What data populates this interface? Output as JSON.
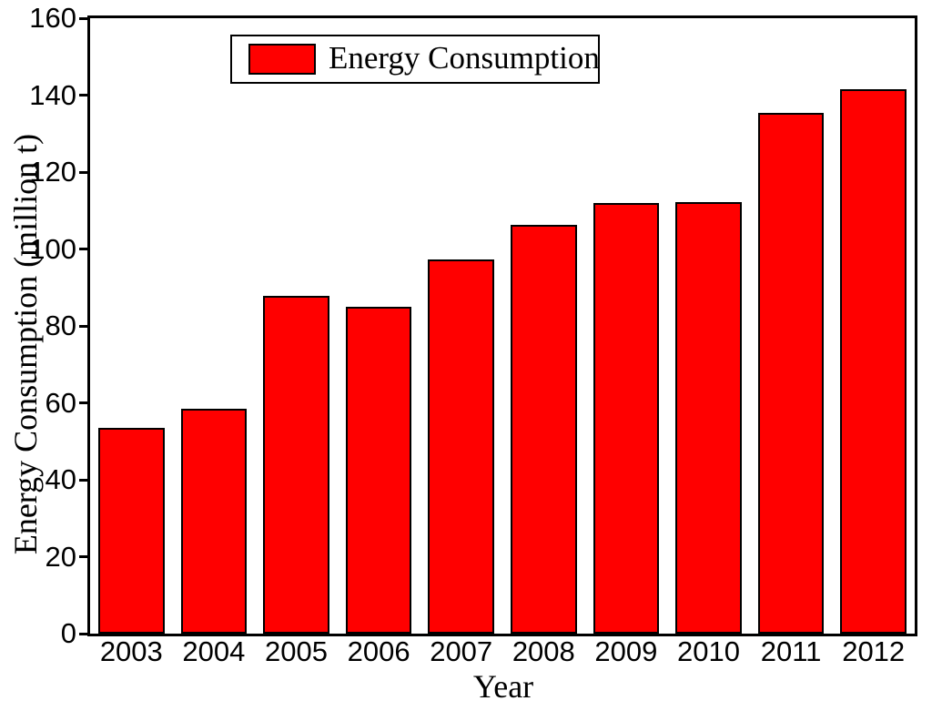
{
  "chart_data": {
    "type": "bar",
    "title": "",
    "xlabel": "Year",
    "ylabel": "Energy Consumption (million t)",
    "legend_label": "Energy Consumption",
    "legend_position": "top-center-inside",
    "categories": [
      "2003",
      "2004",
      "2005",
      "2006",
      "2007",
      "2008",
      "2009",
      "2010",
      "2011",
      "2012"
    ],
    "values": [
      53.5,
      58.5,
      87.8,
      85.0,
      97.2,
      106.3,
      112.0,
      112.3,
      135.5,
      141.5
    ],
    "ylim": [
      0,
      160
    ],
    "yticks": [
      0,
      20,
      40,
      60,
      80,
      100,
      120,
      140,
      160
    ],
    "grid": false,
    "bar_color": "#ff0000",
    "bar_border_color": "#000000",
    "axis_color": "#000000",
    "background_color": "#ffffff"
  }
}
